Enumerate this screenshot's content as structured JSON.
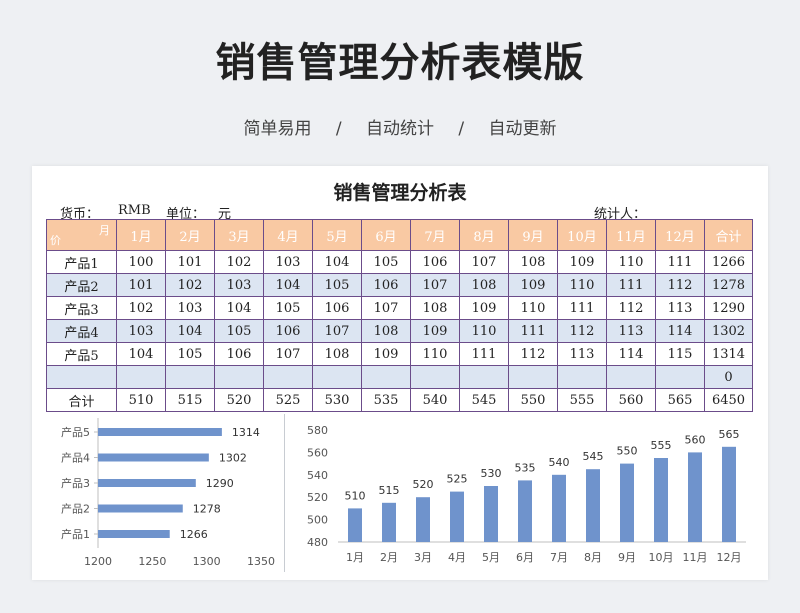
{
  "header": {
    "title": "销售管理分析表模版",
    "subtitle": "简单易用　 /　 自动统计　 /　 自动更新"
  },
  "sheet": {
    "title": "销售管理分析表",
    "currency_label": "货币：",
    "currency_value": "RMB",
    "unit_label": "单位：",
    "unit_value": "元",
    "counter_label": "统计人：",
    "corner_month": "月",
    "corner_product": "价",
    "columns": [
      "1月",
      "2月",
      "3月",
      "4月",
      "5月",
      "6月",
      "7月",
      "8月",
      "9月",
      "10月",
      "11月",
      "12月",
      "合计"
    ],
    "rows": [
      {
        "label": "产品1",
        "values": [
          "100",
          "101",
          "102",
          "103",
          "104",
          "105",
          "106",
          "107",
          "108",
          "109",
          "110",
          "111",
          "1266"
        ]
      },
      {
        "label": "产品2",
        "values": [
          "101",
          "102",
          "103",
          "104",
          "105",
          "106",
          "107",
          "108",
          "109",
          "110",
          "111",
          "112",
          "1278"
        ]
      },
      {
        "label": "产品3",
        "values": [
          "102",
          "103",
          "104",
          "105",
          "106",
          "107",
          "108",
          "109",
          "110",
          "111",
          "112",
          "113",
          "1290"
        ]
      },
      {
        "label": "产品4",
        "values": [
          "103",
          "104",
          "105",
          "106",
          "107",
          "108",
          "109",
          "110",
          "111",
          "112",
          "113",
          "114",
          "1302"
        ]
      },
      {
        "label": "产品5",
        "values": [
          "104",
          "105",
          "106",
          "107",
          "108",
          "109",
          "110",
          "111",
          "112",
          "113",
          "114",
          "115",
          "1314"
        ]
      },
      {
        "label": "",
        "values": [
          "",
          "",
          "",
          "",
          "",
          "",
          "",
          "",
          "",
          "",
          "",
          "",
          "0"
        ]
      }
    ],
    "total_row": {
      "label": "合计",
      "values": [
        "510",
        "515",
        "520",
        "525",
        "530",
        "535",
        "540",
        "545",
        "550",
        "555",
        "560",
        "565",
        "6450"
      ]
    }
  },
  "chart_data": [
    {
      "type": "bar",
      "orientation": "horizontal",
      "categories": [
        "产品1",
        "产品2",
        "产品3",
        "产品4",
        "产品5"
      ],
      "values": [
        1266,
        1278,
        1290,
        1302,
        1314
      ],
      "xlim": [
        1200,
        1350
      ],
      "xticks": [
        1200,
        1250,
        1300,
        1350
      ],
      "color": "#6f93cc"
    },
    {
      "type": "bar",
      "categories": [
        "1月",
        "2月",
        "3月",
        "4月",
        "5月",
        "6月",
        "7月",
        "8月",
        "9月",
        "10月",
        "11月",
        "12月"
      ],
      "values": [
        510,
        515,
        520,
        525,
        530,
        535,
        540,
        545,
        550,
        555,
        560,
        565
      ],
      "ylim": [
        480,
        580
      ],
      "yticks": [
        480,
        500,
        520,
        540,
        560,
        580
      ],
      "color": "#6f93cc"
    }
  ]
}
